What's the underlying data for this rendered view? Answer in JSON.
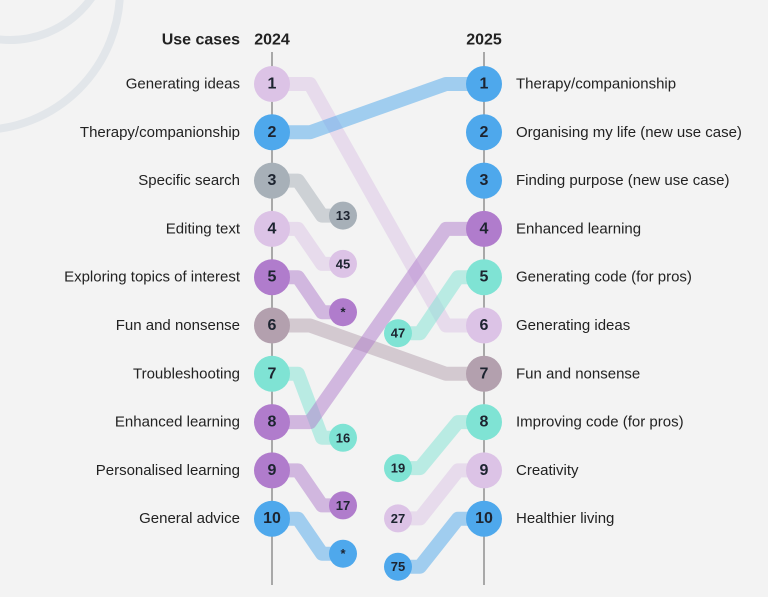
{
  "header": {
    "title": "Use cases",
    "year_left": "2024",
    "year_right": "2025"
  },
  "left": [
    {
      "rank": 1,
      "label": "Generating ideas",
      "color": "#dcc3e6",
      "moves_to": 6
    },
    {
      "rank": 2,
      "label": "Therapy/companionship",
      "color": "#4ea8ec",
      "moves_to": 1
    },
    {
      "rank": 3,
      "label": "Specific search",
      "color": "#a7b0b8",
      "badge": "13"
    },
    {
      "rank": 4,
      "label": "Editing text",
      "color": "#dcc3e6",
      "badge": "45"
    },
    {
      "rank": 5,
      "label": "Exploring topics of interest",
      "color": "#b07ccc",
      "badge": "*"
    },
    {
      "rank": 6,
      "label": "Fun and nonsense",
      "color": "#b3a0ae",
      "moves_to": 7
    },
    {
      "rank": 7,
      "label": "Troubleshooting",
      "color": "#7fe3d4",
      "badge": "16"
    },
    {
      "rank": 8,
      "label": "Enhanced learning",
      "color": "#b07ccc",
      "moves_to": 4
    },
    {
      "rank": 9,
      "label": "Personalised learning",
      "color": "#b07ccc",
      "badge": "17"
    },
    {
      "rank": 10,
      "label": "General advice",
      "color": "#4ea8ec",
      "badge": "*"
    }
  ],
  "right": [
    {
      "rank": 1,
      "label": "Therapy/companionship",
      "color": "#4ea8ec"
    },
    {
      "rank": 2,
      "label": "Organising my life (new use case)",
      "color": "#4ea8ec"
    },
    {
      "rank": 3,
      "label": "Finding purpose (new use case)",
      "color": "#4ea8ec"
    },
    {
      "rank": 4,
      "label": "Enhanced learning",
      "color": "#b07ccc"
    },
    {
      "rank": 5,
      "label": "Generating code (for pros)",
      "color": "#7fe3d4",
      "badge": "47"
    },
    {
      "rank": 6,
      "label": "Generating ideas",
      "color": "#dcc3e6"
    },
    {
      "rank": 7,
      "label": "Fun and nonsense",
      "color": "#b3a0ae"
    },
    {
      "rank": 8,
      "label": "Improving code (for pros)",
      "color": "#7fe3d4",
      "badge": "19"
    },
    {
      "rank": 9,
      "label": "Creativity",
      "color": "#dcc3e6",
      "badge": "27"
    },
    {
      "rank": 10,
      "label": "Healthier living",
      "color": "#4ea8ec",
      "badge": "75"
    }
  ]
}
